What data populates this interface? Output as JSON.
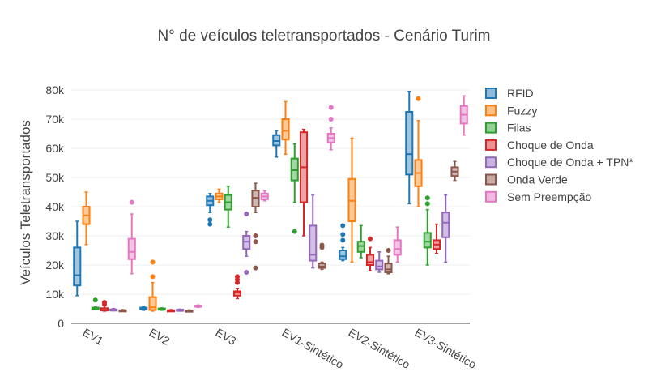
{
  "chart_data": {
    "type": "box",
    "title": "N° de veículos teletransportados - Cenário Turim",
    "xlabel": "",
    "ylabel": "Veículos Teletransportados",
    "ylim": [
      0,
      80000
    ],
    "yticks": [
      0,
      10000,
      20000,
      30000,
      40000,
      50000,
      60000,
      70000,
      80000
    ],
    "ytick_labels": [
      "0",
      "10k",
      "20k",
      "30k",
      "40k",
      "50k",
      "60k",
      "70k",
      "80k"
    ],
    "grid": true,
    "legend_position": "right",
    "categories": [
      "EV1",
      "EV2",
      "EV3",
      "EV1-Sintético",
      "EV2-Sintético",
      "EV3-Sintético"
    ],
    "series": [
      {
        "name": "RFID",
        "color": "#1f77b4",
        "fill": "#8fbbd9",
        "boxes": [
          {
            "min": 9500,
            "q1": 13000,
            "median": 16500,
            "q3": 26000,
            "max": 35000,
            "outliers": []
          },
          {
            "min": 4500,
            "q1": 4800,
            "median": 5000,
            "q3": 5400,
            "max": 5800,
            "outliers": []
          },
          {
            "min": 38000,
            "q1": 40500,
            "median": 42000,
            "q3": 43500,
            "max": 44500,
            "outliers": [
              34000,
              35500
            ]
          },
          {
            "min": 57000,
            "q1": 61000,
            "median": 62500,
            "q3": 64500,
            "max": 66000,
            "outliers": []
          },
          {
            "min": 21500,
            "q1": 22000,
            "median": 23000,
            "q3": 25000,
            "max": 26000,
            "outliers": [
              28500,
              30500,
              33500
            ]
          },
          {
            "min": 41000,
            "q1": 51000,
            "median": 58000,
            "q3": 72500,
            "max": 79500,
            "outliers": []
          }
        ]
      },
      {
        "name": "Fuzzy",
        "color": "#ff7f0e",
        "fill": "#ffbf86",
        "boxes": [
          {
            "min": 27000,
            "q1": 34000,
            "median": 37000,
            "q3": 40000,
            "max": 45000,
            "outliers": []
          },
          {
            "min": 4200,
            "q1": 4600,
            "median": 5500,
            "q3": 9000,
            "max": 14000,
            "outliers": [
              16000,
              21000
            ]
          },
          {
            "min": 41500,
            "q1": 42500,
            "median": 43500,
            "q3": 44500,
            "max": 46000,
            "outliers": []
          },
          {
            "min": 58000,
            "q1": 63000,
            "median": 66000,
            "q3": 70000,
            "max": 76000,
            "outliers": []
          },
          {
            "min": 21000,
            "q1": 35000,
            "median": 42000,
            "q3": 49500,
            "max": 63500,
            "outliers": []
          },
          {
            "min": 40000,
            "q1": 47000,
            "median": 51500,
            "q3": 56000,
            "max": 69500,
            "outliers": [
              77000
            ]
          }
        ]
      },
      {
        "name": "Filas",
        "color": "#2ca02c",
        "fill": "#95cf95",
        "boxes": [
          {
            "min": 4700,
            "q1": 4900,
            "median": 5100,
            "q3": 5400,
            "max": 5600,
            "outliers": [
              8000
            ]
          },
          {
            "min": 4500,
            "q1": 4700,
            "median": 4900,
            "q3": 5100,
            "max": 5300,
            "outliers": []
          },
          {
            "min": 33000,
            "q1": 39000,
            "median": 41500,
            "q3": 44000,
            "max": 47000,
            "outliers": []
          },
          {
            "min": 41500,
            "q1": 49000,
            "median": 52500,
            "q3": 56500,
            "max": 61500,
            "outliers": [
              31500
            ]
          },
          {
            "min": 22500,
            "q1": 24500,
            "median": 26500,
            "q3": 28000,
            "max": 33500,
            "outliers": []
          },
          {
            "min": 20000,
            "q1": 26000,
            "median": 28000,
            "q3": 31000,
            "max": 39000,
            "outliers": [
              41000,
              43000
            ]
          }
        ]
      },
      {
        "name": "Choque de Onda",
        "color": "#d62728",
        "fill": "#eb9394",
        "boxes": [
          {
            "min": 4200,
            "q1": 4400,
            "median": 4600,
            "q3": 5200,
            "max": 6000,
            "outliers": [
              6500,
              7200
            ]
          },
          {
            "min": 4200,
            "q1": 4300,
            "median": 4400,
            "q3": 4500,
            "max": 4700,
            "outliers": []
          },
          {
            "min": 8500,
            "q1": 9500,
            "median": 10500,
            "q3": 11000,
            "max": 12000,
            "outliers": [
              14000,
              15000,
              16000
            ]
          },
          {
            "min": 30000,
            "q1": 41500,
            "median": 53500,
            "q3": 65500,
            "max": 66500,
            "outliers": []
          },
          {
            "min": 18000,
            "q1": 20000,
            "median": 21000,
            "q3": 23500,
            "max": 26000,
            "outliers": [
              29000
            ]
          },
          {
            "min": 24000,
            "q1": 25500,
            "median": 27000,
            "q3": 28500,
            "max": 34000,
            "outliers": []
          }
        ]
      },
      {
        "name": "Choque de Onda + TPN*",
        "color": "#9467bd",
        "fill": "#c9b3de",
        "boxes": [
          {
            "min": 4300,
            "q1": 4400,
            "median": 4600,
            "q3": 4800,
            "max": 5100,
            "outliers": []
          },
          {
            "min": 4200,
            "q1": 4300,
            "median": 4500,
            "q3": 4700,
            "max": 4900,
            "outliers": []
          },
          {
            "min": 23000,
            "q1": 25500,
            "median": 28000,
            "q3": 30000,
            "max": 31500,
            "outliers": [
              37500,
              17500
            ]
          },
          {
            "min": 19000,
            "q1": 21500,
            "median": 23500,
            "q3": 33500,
            "max": 44000,
            "outliers": []
          },
          {
            "min": 17500,
            "q1": 18500,
            "median": 19500,
            "q3": 21500,
            "max": 24500,
            "outliers": []
          },
          {
            "min": 21000,
            "q1": 29500,
            "median": 34500,
            "q3": 38000,
            "max": 44000,
            "outliers": []
          }
        ]
      },
      {
        "name": "Onda Verde",
        "color": "#8c564b",
        "fill": "#c5aaa5",
        "boxes": [
          {
            "min": 4100,
            "q1": 4200,
            "median": 4300,
            "q3": 4500,
            "max": 4700,
            "outliers": []
          },
          {
            "min": 4100,
            "q1": 4200,
            "median": 4300,
            "q3": 4400,
            "max": 4600,
            "outliers": []
          },
          {
            "min": 38000,
            "q1": 40000,
            "median": 43000,
            "q3": 45500,
            "max": 48000,
            "outliers": [
              28000,
              30000,
              19000
            ]
          },
          {
            "min": 18500,
            "q1": 19000,
            "median": 19500,
            "q3": 20500,
            "max": 21000,
            "outliers": [
              26000,
              26800
            ]
          },
          {
            "min": 17000,
            "q1": 17500,
            "median": 18500,
            "q3": 20500,
            "max": 23000,
            "outliers": [
              25000
            ]
          },
          {
            "min": 49000,
            "q1": 50500,
            "median": 52000,
            "q3": 53500,
            "max": 55500,
            "outliers": []
          }
        ]
      },
      {
        "name": "Sem Preempção",
        "color": "#e377c2",
        "fill": "#f1bbe1",
        "boxes": [
          {
            "min": 17000,
            "q1": 22000,
            "median": 24500,
            "q3": 29000,
            "max": 37500,
            "outliers": [
              41500
            ]
          },
          {
            "min": 5500,
            "q1": 5700,
            "median": 5900,
            "q3": 6100,
            "max": 6300,
            "outliers": []
          },
          {
            "min": 42000,
            "q1": 42500,
            "median": 43500,
            "q3": 44500,
            "max": 45500,
            "outliers": []
          },
          {
            "min": 59500,
            "q1": 62000,
            "median": 63500,
            "q3": 65000,
            "max": 67000,
            "outliers": [
              70000,
              74000
            ]
          },
          {
            "min": 21000,
            "q1": 23500,
            "median": 25500,
            "q3": 28500,
            "max": 33000,
            "outliers": []
          },
          {
            "min": 64500,
            "q1": 68500,
            "median": 71500,
            "q3": 74500,
            "max": 78000,
            "outliers": []
          }
        ]
      }
    ]
  }
}
